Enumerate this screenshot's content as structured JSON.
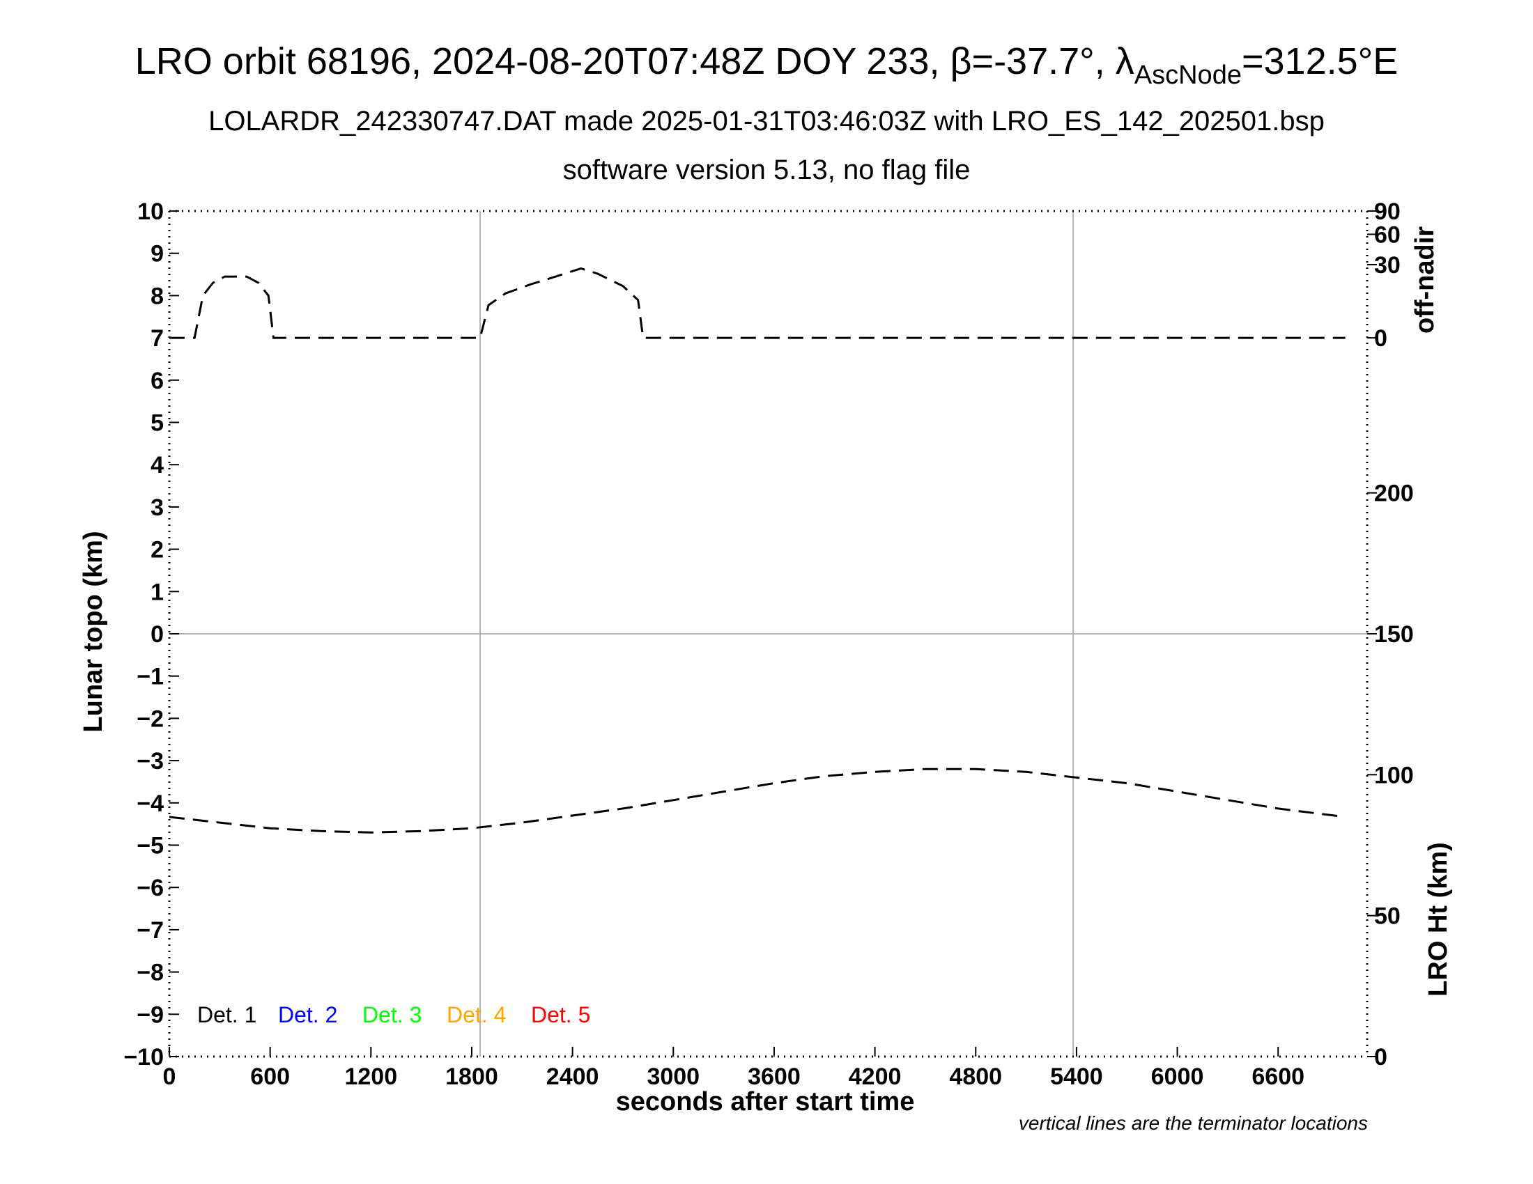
{
  "header": {
    "title_prefix": "LRO orbit 68196, 2024-08-20T07:48Z DOY 233, β=-37.7°, λ",
    "title_subscript": "AscNode",
    "title_suffix": "=312.5°E",
    "subtitle1": "LOLARDR_242330747.DAT made 2025-01-31T03:46:03Z with LRO_ES_142_202501.bsp",
    "subtitle2": "software version 5.13, no flag file"
  },
  "footnote": "vertical lines are the terminator locations",
  "chart_data": {
    "type": "line",
    "xlabel": "seconds after start time",
    "ylabel": "Lunar topo (km)",
    "y2label_top": "off-nadir",
    "y2label_bottom": "LRO Ht (km)",
    "xlim": [
      0,
      7130
    ],
    "ylim": [
      -10,
      10
    ],
    "x_ticks": [
      0,
      600,
      1200,
      1800,
      2400,
      3000,
      3600,
      4200,
      4800,
      5400,
      6000,
      6600
    ],
    "y_ticks": [
      -10,
      -9,
      -8,
      -7,
      -6,
      -5,
      -4,
      -3,
      -2,
      -1,
      0,
      1,
      2,
      3,
      4,
      5,
      6,
      7,
      8,
      9,
      10
    ],
    "y_tick_labels": [
      "−10",
      "−9",
      "−8",
      "−7",
      "−6",
      "−5",
      "−4",
      "−3",
      "−2",
      "−1",
      "0",
      "1",
      "2",
      "3",
      "4",
      "5",
      "6",
      "7",
      "8",
      "9",
      "10"
    ],
    "off_nadir_ticks": [
      0,
      30,
      60,
      90
    ],
    "off_nadir_scale": "sqrt",
    "off_nadir_range": [
      0,
      90
    ],
    "lro_ht_ticks": [
      0,
      50,
      100,
      150,
      200
    ],
    "lro_ht_range": [
      0,
      300
    ],
    "terminator_x": [
      1850,
      5380
    ],
    "zero_line_y": 0,
    "legend": [
      {
        "label": "Det. 1",
        "color": "#000000"
      },
      {
        "label": "Det. 2",
        "color": "#0000ff"
      },
      {
        "label": "Det. 3",
        "color": "#00ff00"
      },
      {
        "label": "Det. 4",
        "color": "#ffa500"
      },
      {
        "label": "Det. 5",
        "color": "#ff0000"
      }
    ],
    "series": [
      {
        "axis": "off-nadir (deg)",
        "style": "dashed",
        "color": "#000000",
        "points": [
          [
            0,
            0
          ],
          [
            150,
            0
          ],
          [
            200,
            10
          ],
          [
            260,
            17
          ],
          [
            330,
            21
          ],
          [
            460,
            21
          ],
          [
            530,
            17
          ],
          [
            590,
            10
          ],
          [
            620,
            0
          ],
          [
            1850,
            0
          ],
          [
            1900,
            6
          ],
          [
            2000,
            11
          ],
          [
            2150,
            16
          ],
          [
            2300,
            21
          ],
          [
            2450,
            27
          ],
          [
            2550,
            23
          ],
          [
            2700,
            15
          ],
          [
            2790,
            8
          ],
          [
            2820,
            0
          ],
          [
            7000,
            0
          ]
        ]
      },
      {
        "axis": "LRO Ht (km)",
        "style": "dashed",
        "color": "#000000",
        "points": [
          [
            0,
            85
          ],
          [
            300,
            83
          ],
          [
            600,
            81
          ],
          [
            900,
            80
          ],
          [
            1200,
            79.5
          ],
          [
            1500,
            80
          ],
          [
            1800,
            81
          ],
          [
            2100,
            83
          ],
          [
            2400,
            85.5
          ],
          [
            2700,
            88
          ],
          [
            3000,
            91
          ],
          [
            3300,
            94
          ],
          [
            3600,
            97
          ],
          [
            3900,
            99.5
          ],
          [
            4200,
            101
          ],
          [
            4500,
            102
          ],
          [
            4800,
            102
          ],
          [
            5100,
            101
          ],
          [
            5400,
            99
          ],
          [
            5700,
            97
          ],
          [
            6000,
            94
          ],
          [
            6300,
            91
          ],
          [
            6600,
            88
          ],
          [
            7000,
            85
          ]
        ]
      }
    ]
  }
}
